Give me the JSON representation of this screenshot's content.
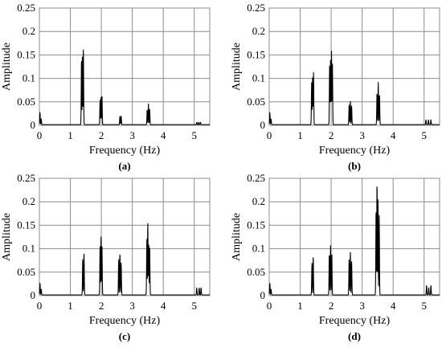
{
  "colors": {
    "line": "#000000",
    "grid": "#8c8c8c",
    "background": "#ffffff"
  },
  "chart_data": [
    {
      "type": "line",
      "panel_label": "(a)",
      "xlabel": "Frequency (Hz)",
      "ylabel": "Amplitude",
      "xlim": [
        0,
        5.5
      ],
      "ylim": [
        0,
        0.25
      ],
      "xticks": [
        0,
        1,
        2,
        3,
        4,
        5
      ],
      "yticks": [
        0,
        0.05,
        0.1,
        0.15,
        0.2,
        0.25
      ],
      "ytick_labels": [
        "0",
        "0.05",
        "0.1",
        "0.15",
        "0.2",
        "0.25"
      ],
      "grid": true,
      "peaks": [
        {
          "f": 0.02,
          "a": 0.026
        },
        {
          "f": 0.06,
          "a": 0.012
        },
        {
          "f": 1.36,
          "a": 0.142
        },
        {
          "f": 1.39,
          "a": 0.152
        },
        {
          "f": 1.42,
          "a": 0.165
        },
        {
          "f": 1.96,
          "a": 0.053
        },
        {
          "f": 1.99,
          "a": 0.06
        },
        {
          "f": 2.02,
          "a": 0.063
        },
        {
          "f": 2.6,
          "a": 0.018
        },
        {
          "f": 2.64,
          "a": 0.018
        },
        {
          "f": 3.48,
          "a": 0.032
        },
        {
          "f": 3.52,
          "a": 0.044
        },
        {
          "f": 3.56,
          "a": 0.034
        },
        {
          "f": 5.08,
          "a": 0.005
        },
        {
          "f": 5.14,
          "a": 0.005
        },
        {
          "f": 5.2,
          "a": 0.005
        }
      ]
    },
    {
      "type": "line",
      "panel_label": "(b)",
      "xlabel": "Frequency (Hz)",
      "ylabel": "Amplitude",
      "xlim": [
        0,
        5.5
      ],
      "ylim": [
        0,
        0.25
      ],
      "xticks": [
        0,
        1,
        2,
        3,
        4,
        5
      ],
      "yticks": [
        0,
        0.05,
        0.1,
        0.15,
        0.2,
        0.25
      ],
      "ytick_labels": [
        "0",
        "0.05",
        "0.1",
        "0.15",
        "0.2",
        "0.25"
      ],
      "grid": true,
      "peaks": [
        {
          "f": 0.02,
          "a": 0.026
        },
        {
          "f": 0.06,
          "a": 0.012
        },
        {
          "f": 1.37,
          "a": 0.09
        },
        {
          "f": 1.4,
          "a": 0.1
        },
        {
          "f": 1.43,
          "a": 0.111
        },
        {
          "f": 1.95,
          "a": 0.125
        },
        {
          "f": 1.98,
          "a": 0.137
        },
        {
          "f": 2.01,
          "a": 0.157
        },
        {
          "f": 2.04,
          "a": 0.13
        },
        {
          "f": 2.58,
          "a": 0.042
        },
        {
          "f": 2.62,
          "a": 0.05
        },
        {
          "f": 2.66,
          "a": 0.04
        },
        {
          "f": 3.48,
          "a": 0.068
        },
        {
          "f": 3.52,
          "a": 0.09
        },
        {
          "f": 3.56,
          "a": 0.065
        },
        {
          "f": 5.06,
          "a": 0.01
        },
        {
          "f": 5.14,
          "a": 0.01
        },
        {
          "f": 5.22,
          "a": 0.01
        }
      ]
    },
    {
      "type": "line",
      "panel_label": "(c)",
      "xlabel": "Frequency (Hz)",
      "ylabel": "Amplitude",
      "xlim": [
        0,
        5.5
      ],
      "ylim": [
        0,
        0.25
      ],
      "xticks": [
        0,
        1,
        2,
        3,
        4,
        5
      ],
      "yticks": [
        0,
        0.05,
        0.1,
        0.15,
        0.2,
        0.25
      ],
      "ytick_labels": [
        "0",
        "0.05",
        "0.1",
        "0.15",
        "0.2",
        "0.25"
      ],
      "grid": true,
      "peaks": [
        {
          "f": 0.02,
          "a": 0.025
        },
        {
          "f": 0.06,
          "a": 0.012
        },
        {
          "f": 1.4,
          "a": 0.075
        },
        {
          "f": 1.44,
          "a": 0.09
        },
        {
          "f": 1.96,
          "a": 0.105
        },
        {
          "f": 1.99,
          "a": 0.128
        },
        {
          "f": 2.02,
          "a": 0.108
        },
        {
          "f": 2.56,
          "a": 0.075
        },
        {
          "f": 2.6,
          "a": 0.09
        },
        {
          "f": 2.64,
          "a": 0.068
        },
        {
          "f": 3.47,
          "a": 0.12
        },
        {
          "f": 3.5,
          "a": 0.155
        },
        {
          "f": 3.53,
          "a": 0.11
        },
        {
          "f": 3.56,
          "a": 0.105
        },
        {
          "f": 5.08,
          "a": 0.015
        },
        {
          "f": 5.16,
          "a": 0.015
        },
        {
          "f": 5.22,
          "a": 0.015
        }
      ]
    },
    {
      "type": "line",
      "panel_label": "(d)",
      "xlabel": "Frequency (Hz)",
      "ylabel": "Amplitude",
      "xlim": [
        0,
        5.5
      ],
      "ylim": [
        0,
        0.25
      ],
      "xticks": [
        0,
        1,
        2,
        3,
        4,
        5
      ],
      "yticks": [
        0,
        0.05,
        0.1,
        0.15,
        0.2,
        0.25
      ],
      "ytick_labels": [
        "0",
        "0.05",
        "0.1",
        "0.15",
        "0.2",
        "0.25"
      ],
      "grid": true,
      "peaks": [
        {
          "f": 0.02,
          "a": 0.025
        },
        {
          "f": 0.06,
          "a": 0.012
        },
        {
          "f": 1.38,
          "a": 0.068
        },
        {
          "f": 1.42,
          "a": 0.082
        },
        {
          "f": 1.94,
          "a": 0.088
        },
        {
          "f": 1.98,
          "a": 0.105
        },
        {
          "f": 2.02,
          "a": 0.09
        },
        {
          "f": 2.58,
          "a": 0.075
        },
        {
          "f": 2.62,
          "a": 0.092
        },
        {
          "f": 2.66,
          "a": 0.072
        },
        {
          "f": 3.45,
          "a": 0.185
        },
        {
          "f": 3.48,
          "a": 0.243
        },
        {
          "f": 3.51,
          "a": 0.21
        },
        {
          "f": 3.55,
          "a": 0.17
        },
        {
          "f": 5.08,
          "a": 0.02
        },
        {
          "f": 5.15,
          "a": 0.015
        },
        {
          "f": 5.22,
          "a": 0.02
        }
      ]
    }
  ]
}
